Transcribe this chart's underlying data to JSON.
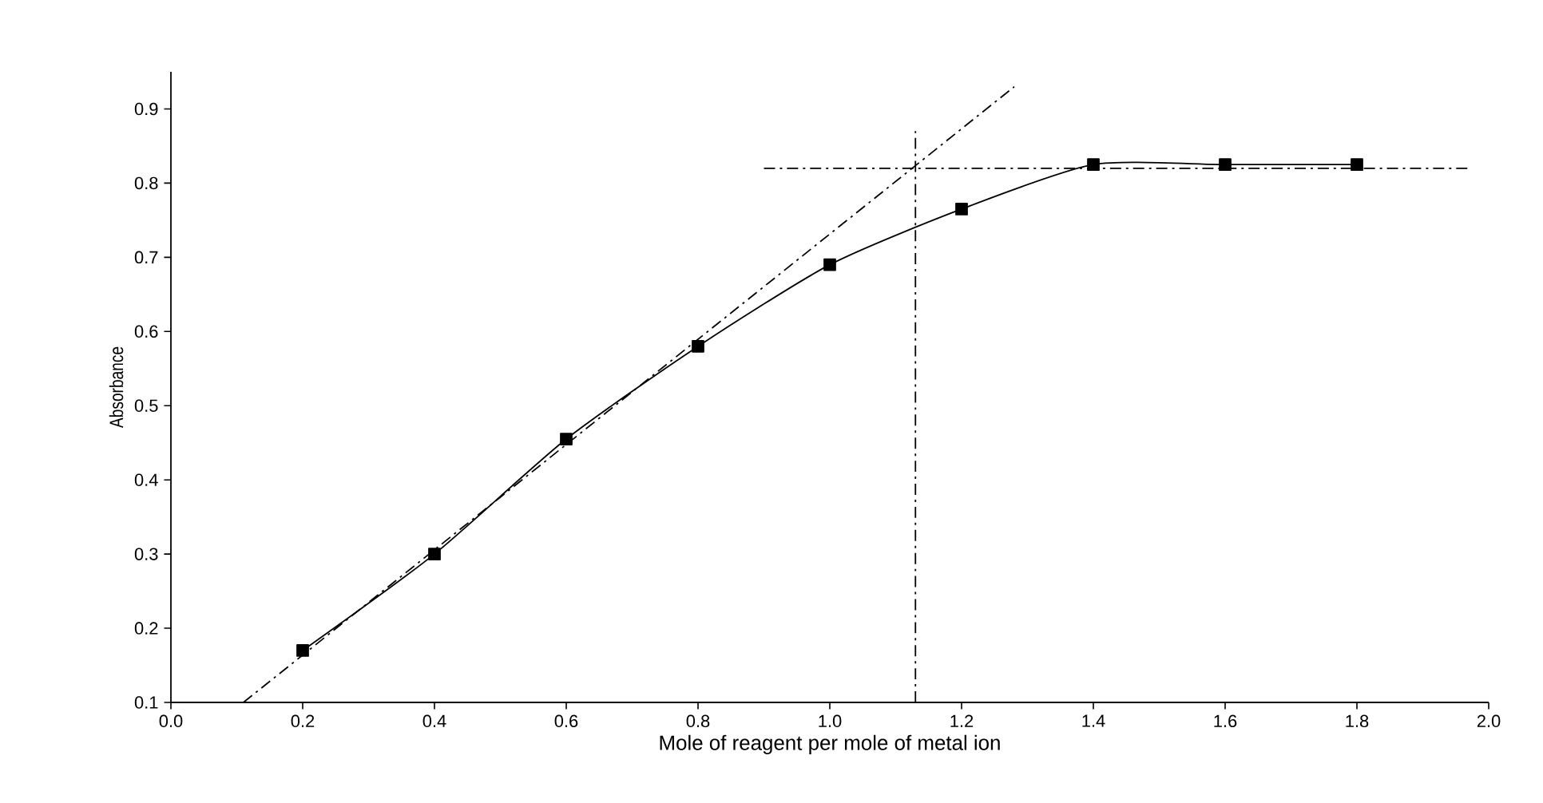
{
  "chart_data": {
    "type": "line",
    "xlabel": "Mole of reagent per mole of metal ion",
    "ylabel": "Absorbance",
    "xlim": [
      0.0,
      2.0
    ],
    "ylim": [
      0.1,
      0.95
    ],
    "xticks": [
      {
        "value": 0.0,
        "label": "0.0"
      },
      0.2,
      0.4,
      0.6,
      0.8,
      {
        "value": 1.0,
        "label": "1.0"
      },
      1.2,
      1.4,
      1.6,
      1.8,
      {
        "value": 2.0,
        "label": "2.0"
      }
    ],
    "yticks": [
      0.1,
      0.2,
      0.3,
      0.4,
      0.5,
      0.6,
      0.7,
      0.8,
      0.9
    ],
    "series": [
      {
        "color": "#000000",
        "marker": "square",
        "line_style": "solid",
        "x": [
          0.2,
          0.4,
          0.6,
          0.8,
          1.0,
          1.2,
          1.4,
          1.6,
          1.8
        ],
        "values": [
          0.17,
          0.3,
          0.455,
          0.58,
          0.69,
          0.765,
          0.825,
          0.825,
          0.825
        ]
      },
      {
        "color": "#000000",
        "marker": "none",
        "line_style": "dashdot",
        "x": [
          0.11,
          1.28
        ],
        "values": [
          0.1,
          0.93
        ]
      },
      {
        "color": "#000000",
        "marker": "none",
        "line_style": "dashdot",
        "x": [
          0.9,
          1.97
        ],
        "values": [
          0.82,
          0.82
        ]
      },
      {
        "color": "#000000",
        "marker": "none",
        "line_style": "dashdot",
        "x": [
          1.13,
          1.13
        ],
        "values": [
          0.1,
          0.87
        ]
      }
    ]
  }
}
